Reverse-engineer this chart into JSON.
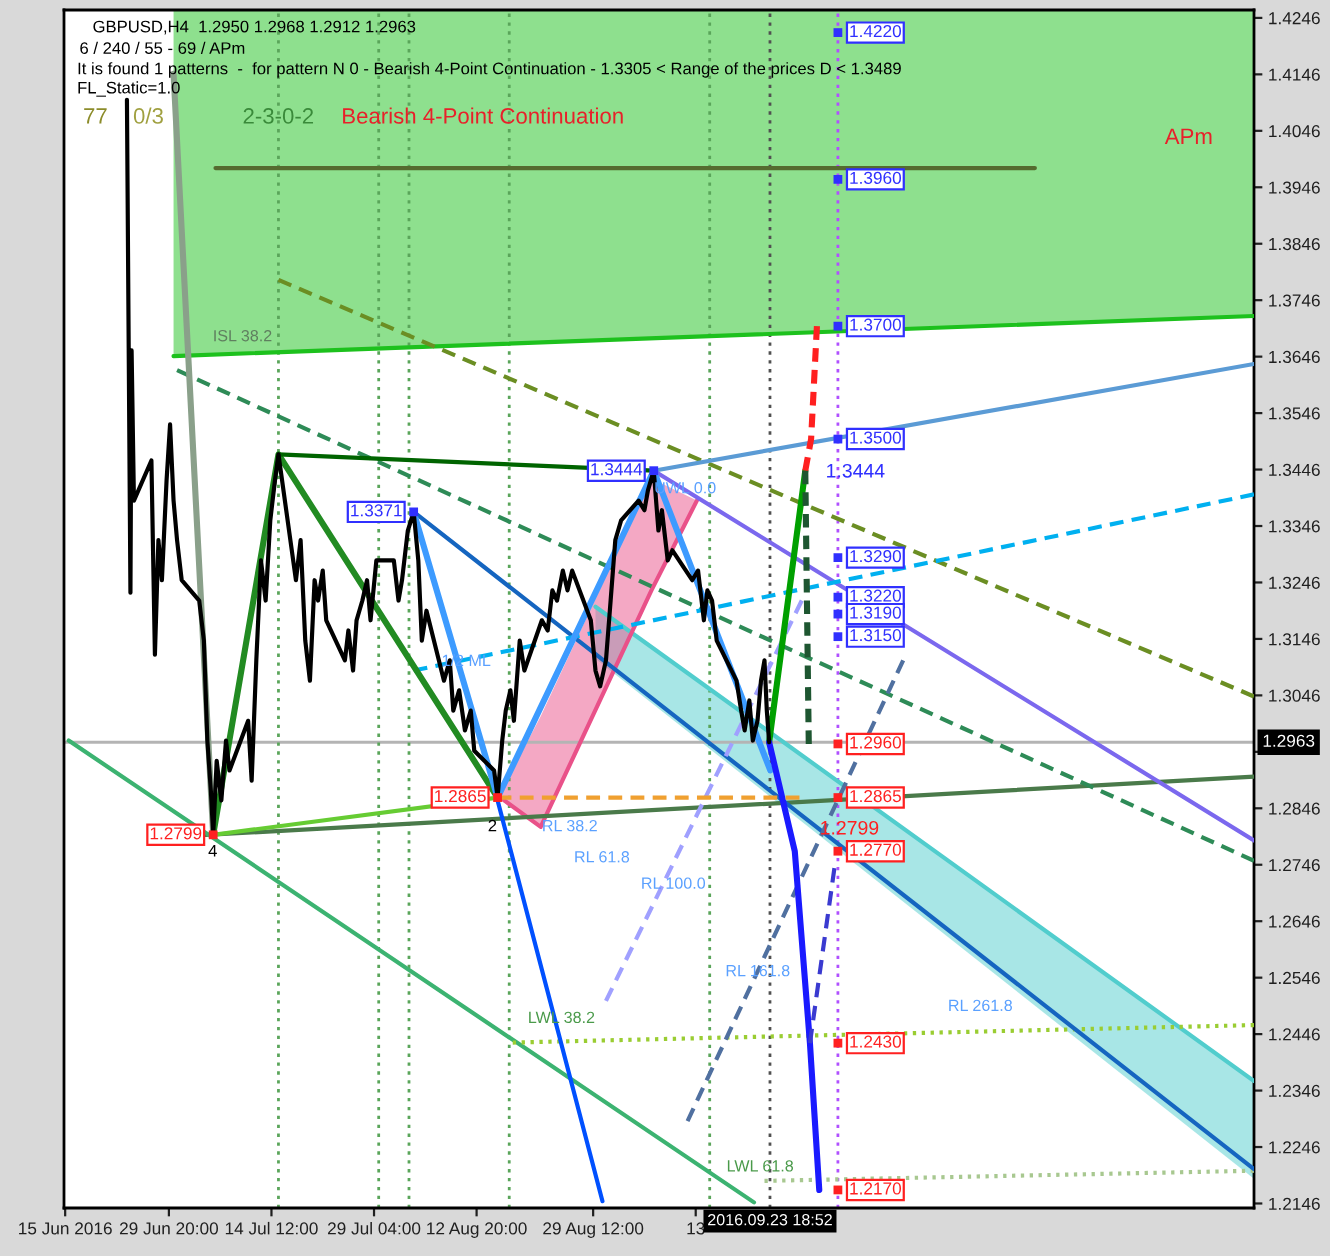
{
  "chart_data": {
    "type": "line",
    "title": "GBPUSD,H4  1.2950 1.2968 1.2912 1.2963",
    "xlim": [
      "2016-06-14T20:00",
      "2016-12-02T00:00"
    ],
    "ylim": [
      1.2138,
      1.426
    ],
    "xticks": [
      {
        "value": "2016-06-15",
        "label": "15 Jun 2016"
      },
      {
        "value": "2016-06-29T20:00",
        "label": "29 Jun 20:00"
      },
      {
        "value": "2016-07-14T12:00",
        "label": "14 Jul 12:00"
      },
      {
        "value": "2016-07-29T04:00",
        "label": "29 Jul 04:00"
      },
      {
        "value": "2016-08-12T20:00",
        "label": "12 Aug 20:00"
      },
      {
        "value": "2016-08-29T12:00",
        "label": "29 Aug 12:00"
      },
      {
        "value": "2016-09-13T04:00",
        "label": "13"
      }
    ],
    "yticks": [
      1.2146,
      1.2246,
      1.2346,
      1.2446,
      1.2546,
      1.2646,
      1.2746,
      1.2846,
      {
        "value": 1.2946,
        "label": null
      },
      1.3046,
      1.3146,
      1.3246,
      1.3346,
      1.3446,
      1.3546,
      1.3646,
      1.3746,
      1.3846,
      1.3946,
      1.4046,
      1.4146,
      1.4246
    ],
    "series": [
      {
        "type": "line",
        "color": "#1dc11d",
        "line_style": "solid",
        "x": [
          "2016-06-30T12:00",
          "2016-12-02T00:00"
        ],
        "values": [
          1.3647,
          1.3718
        ],
        "lower": [
          1.3647,
          1.3718
        ],
        "upper": [
          1.426,
          1.426
        ]
      },
      {
        "type": "line",
        "color": "#51cdcd",
        "line_style": "solid",
        "x": [
          "2016-08-29T20:00",
          "2016-12-02T00:00"
        ],
        "values": [
          1.3203,
          1.2363
        ],
        "lower": [
          1.3111,
          1.219
        ],
        "upper": [
          1.3203,
          1.2363
        ]
      },
      {
        "type": "line",
        "color": "#e95189",
        "line_style": "solid",
        "x": [
          "2016-08-16T00:00",
          "2016-08-22T00:00",
          "2016-09-06T20:00",
          "2016-09-13T08:00"
        ],
        "values": [
          1.2867,
          1.2813,
          1.3232,
          1.3391
        ],
        "lower": [
          1.2867,
          1.2813,
          1.3232,
          1.3391
        ],
        "upper": [
          1.2867,
          1.3009,
          1.343,
          1.3391
        ]
      },
      {
        "type": "line",
        "color": "#556b2f",
        "line_style": "solid",
        "x": [
          "2016-07-06T12:00",
          "2016-10-31T16:00"
        ],
        "values": [
          1.398,
          1.398
        ]
      },
      {
        "type": "line",
        "color": "#4a7a4a",
        "line_style": "solid",
        "x": [
          "2016-07-01T04:00",
          "2016-12-02T00:00"
        ],
        "values": [
          1.2796,
          1.2902
        ]
      },
      {
        "type": "line",
        "color": "#3cb371",
        "line_style": "solid",
        "x": [
          "2016-06-15T12:00",
          "2016-09-21T12:00"
        ],
        "values": [
          1.2966,
          1.2148
        ]
      },
      {
        "type": "line",
        "color": "#6b8e23",
        "line_style": "dashed",
        "x": [
          "2016-07-15T12:00",
          "2016-12-02T00:00"
        ],
        "values": [
          1.3782,
          1.3044
        ]
      },
      {
        "type": "line",
        "color": "#2e8b57",
        "line_style": "dashed",
        "x": [
          "2016-07-01T00:00",
          "2016-12-02T00:00"
        ],
        "values": [
          1.3622,
          1.2753
        ]
      },
      {
        "type": "line",
        "color": "#9acd32",
        "line_style": "dotted",
        "x": [
          "2016-08-18T00:00",
          "2016-12-02T00:00"
        ],
        "values": [
          1.2431,
          1.2462
        ]
      },
      {
        "type": "line",
        "color": "#a8c890",
        "line_style": "dotted",
        "x": [
          "2016-09-23T00:00",
          "2016-12-02T00:00"
        ],
        "values": [
          1.2186,
          1.2204
        ]
      },
      {
        "type": "line",
        "color": "#1565c0",
        "line_style": "solid",
        "x": [
          "2016-08-03T20:00",
          "2016-12-02T00:00"
        ],
        "values": [
          1.3371,
          1.2207
        ]
      },
      {
        "type": "line",
        "color": "#5b9bd5",
        "line_style": "solid",
        "x": [
          "2016-09-07T04:00",
          "2016-12-02T00:00"
        ],
        "values": [
          1.3444,
          1.3633
        ]
      },
      {
        "type": "line",
        "color": "#7b68ee",
        "line_style": "solid",
        "x": [
          "2016-09-07T04:00",
          "2016-12-02T00:00"
        ],
        "values": [
          1.3444,
          1.2789
        ]
      },
      {
        "type": "line",
        "color": "#00b0f0",
        "line_style": "dashed",
        "x": [
          "2016-08-03T20:00",
          "2016-12-02T00:00"
        ],
        "values": [
          1.309,
          1.3402
        ]
      },
      {
        "type": "line",
        "color": "#0050ff",
        "line_style": "solid",
        "x": [
          "2016-08-15T20:00",
          "2016-08-30T20:00"
        ],
        "values": [
          1.286,
          1.215
        ]
      },
      {
        "type": "line",
        "color": "#a0a0ff",
        "line_style": "dashed",
        "x": [
          "2016-08-31T08:00",
          "2016-09-28T08:00"
        ],
        "values": [
          1.2505,
          1.3214
        ]
      },
      {
        "type": "line",
        "color": "#5070a0",
        "line_style": "dashed",
        "x": [
          "2016-09-12T00:00",
          "2016-10-12T20:00"
        ],
        "values": [
          1.2292,
          1.3108
        ]
      },
      {
        "type": "line",
        "color": "#8aa08a",
        "line_style": "solid",
        "x": [
          "2016-06-30T12:00",
          "2016-07-06T04:00"
        ],
        "values": [
          1.4147,
          1.2799
        ]
      },
      {
        "type": "line",
        "color": "#228b22",
        "line_style": "solid",
        "x": [
          "2016-07-06T04:00",
          "2016-07-15T12:00",
          "2016-08-15T20:00"
        ],
        "values": [
          1.2799,
          1.3473,
          1.2865
        ]
      },
      {
        "type": "line",
        "color": "#006400",
        "line_style": "solid",
        "x": [
          "2016-07-15T12:00",
          "2016-09-07T04:00"
        ],
        "values": [
          1.3473,
          1.3444
        ]
      },
      {
        "type": "line",
        "color": "#66cc33",
        "line_style": "solid",
        "x": [
          "2016-07-06T04:00",
          "2016-08-15T20:00"
        ],
        "values": [
          1.2799,
          1.2865
        ]
      },
      {
        "type": "line",
        "color": "#3d9bff",
        "line_style": "solid",
        "x": [
          "2016-08-03T20:00",
          "2016-08-15T20:00",
          "2016-09-07T04:00",
          "2016-09-23T20:00"
        ],
        "values": [
          1.3371,
          1.2865,
          1.3444,
          1.2913
        ]
      },
      {
        "type": "line",
        "color": "#00a000",
        "line_style": "solid",
        "x": [
          "2016-09-23T16:00",
          "2016-09-28T20:00"
        ],
        "values": [
          1.2963,
          1.3444
        ]
      },
      {
        "type": "line",
        "color": "#ff2020",
        "line_style": "dashed",
        "x": [
          "2016-09-28T20:00",
          "2016-09-29T16:00",
          "2016-09-30T12:00"
        ],
        "values": [
          1.3444,
          1.35,
          1.37
        ]
      },
      {
        "type": "line",
        "color": "#1e5631",
        "line_style": "dashed",
        "x": [
          "2016-09-28T20:00",
          "2016-09-29T08:00"
        ],
        "values": [
          1.3444,
          1.296
        ]
      },
      {
        "type": "line",
        "color": "#1a1aff",
        "line_style": "solid",
        "x": [
          "2016-09-23T16:00",
          "2016-09-27T08:00",
          "2016-09-29T12:00",
          "2016-09-30T20:00"
        ],
        "values": [
          1.2963,
          1.277,
          1.243,
          1.217
        ]
      },
      {
        "type": "line",
        "color": "#3a3ad0",
        "line_style": "dashed",
        "x": [
          "2016-09-29T12:00",
          "2016-10-03T00:00"
        ],
        "values": [
          1.243,
          1.274
        ]
      },
      {
        "type": "line",
        "color": "#f0a030",
        "line_style": "dashed",
        "x": [
          "2016-08-15T20:00",
          "2016-09-28T00:00"
        ],
        "values": [
          1.2865,
          1.2865
        ]
      },
      {
        "color": "#000000",
        "line_style": "solid",
        "x": [
          "2016-06-23T20:00",
          "2016-06-24T08:00",
          "2016-06-24T12:00",
          "2016-06-24T20:00",
          "2016-06-27T08:00",
          "2016-06-27T20:00",
          "2016-06-28T08:00",
          "2016-06-28T20:00",
          "2016-06-29T12:00",
          "2016-06-30T00:00",
          "2016-06-30T12:00",
          "2016-07-01T00:00",
          "2016-07-01T16:00",
          "2016-07-04T04:00",
          "2016-07-04T20:00",
          "2016-07-05T08:00",
          "2016-07-05T20:00",
          "2016-07-06T04:00",
          "2016-07-06T16:00",
          "2016-07-07T08:00",
          "2016-07-08T00:00",
          "2016-07-08T12:00",
          "2016-07-11T04:00",
          "2016-07-11T16:00",
          "2016-07-12T08:00",
          "2016-07-13T00:00",
          "2016-07-13T16:00",
          "2016-07-14T08:00",
          "2016-07-15T00:00",
          "2016-07-15T12:00",
          "2016-07-18T00:00",
          "2016-07-18T16:00",
          "2016-07-19T08:00",
          "2016-07-20T00:00",
          "2016-07-20T16:00",
          "2016-07-21T04:00",
          "2016-07-21T20:00",
          "2016-07-22T08:00",
          "2016-07-25T00:00",
          "2016-07-25T12:00",
          "2016-07-26T04:00",
          "2016-07-26T16:00",
          "2016-07-27T12:00",
          "2016-07-28T04:00",
          "2016-07-28T16:00",
          "2016-07-29T12:00",
          "2016-08-01T00:00",
          "2016-08-01T16:00",
          "2016-08-02T04:00",
          "2016-08-03T00:00",
          "2016-08-03T20:00",
          "2016-08-04T12:00",
          "2016-08-05T00:00",
          "2016-08-05T16:00",
          "2016-08-08T04:00",
          "2016-08-09T00:00",
          "2016-08-09T12:00",
          "2016-08-10T08:00",
          "2016-08-11T04:00",
          "2016-08-12T00:00",
          "2016-08-12T12:00",
          "2016-08-15T08:00",
          "2016-08-15T20:00",
          "2016-08-16T12:00",
          "2016-08-17T00:00",
          "2016-08-17T16:00",
          "2016-08-18T04:00",
          "2016-08-19T00:00",
          "2016-08-19T16:00",
          "2016-08-22T04:00",
          "2016-08-23T00:00",
          "2016-08-23T16:00",
          "2016-08-24T08:00",
          "2016-08-25T04:00",
          "2016-08-25T20:00",
          "2016-08-26T12:00",
          "2016-08-29T04:00",
          "2016-08-29T20:00",
          "2016-08-30T12:00",
          "2016-08-31T08:00",
          "2016-09-01T00:00",
          "2016-09-01T16:00",
          "2016-09-02T12:00",
          "2016-09-05T00:00",
          "2016-09-05T20:00",
          "2016-09-06T08:00",
          "2016-09-07T04:00",
          "2016-09-07T20:00",
          "2016-09-08T08:00",
          "2016-09-09T04:00",
          "2016-09-09T20:00",
          "2016-09-12T16:00",
          "2016-09-13T12:00",
          "2016-09-14T08:00",
          "2016-09-14T20:00",
          "2016-09-15T12:00",
          "2016-09-16T04:00",
          "2016-09-19T00:00",
          "2016-09-19T16:00",
          "2016-09-20T04:00",
          "2016-09-20T20:00",
          "2016-09-21T08:00",
          "2016-09-22T00:00",
          "2016-09-22T12:00",
          "2016-09-23T00:00",
          "2016-09-23T08:00",
          "2016-09-23T16:00"
        ],
        "values": [
          1.4101,
          1.3228,
          1.3657,
          1.3391,
          1.3462,
          1.3118,
          1.3321,
          1.325,
          1.3427,
          1.3526,
          1.3391,
          1.3321,
          1.325,
          1.3214,
          1.3143,
          1.2966,
          1.2877,
          1.2799,
          1.293,
          1.286,
          1.2966,
          1.2913,
          1.3001,
          1.2895,
          1.3108,
          1.3285,
          1.3214,
          1.3356,
          1.3427,
          1.3473,
          1.325,
          1.3321,
          1.3143,
          1.3072,
          1.325,
          1.3214,
          1.3267,
          1.3179,
          1.3108,
          1.3161,
          1.309,
          1.3179,
          1.3214,
          1.325,
          1.3179,
          1.3285,
          1.3285,
          1.3214,
          1.325,
          1.3338,
          1.3371,
          1.3285,
          1.3143,
          1.3196,
          1.3072,
          1.3108,
          1.3019,
          1.3055,
          1.2984,
          1.3019,
          1.2948,
          1.2913,
          1.2865,
          1.2966,
          1.3019,
          1.3055,
          1.3001,
          1.3143,
          1.309,
          1.3179,
          1.3161,
          1.3232,
          1.3214,
          1.3267,
          1.3232,
          1.3267,
          1.3179,
          1.309,
          1.3062,
          1.3108,
          1.3214,
          1.3321,
          1.3356,
          1.3391,
          1.3374,
          1.3409,
          1.3444,
          1.3338,
          1.3374,
          1.3285,
          1.3303,
          1.325,
          1.3267,
          1.3179,
          1.3232,
          1.3214,
          1.3143,
          1.3072,
          1.3019,
          1.2984,
          1.3037,
          1.2966,
          1.3001,
          1.3072,
          1.3108,
          1.3019,
          1.2963
        ]
      },
      {
        "type": "scatter",
        "marker": "square",
        "x": [
          "2016-07-06T04:00",
          "2016-08-03T20:00",
          "2016-08-15T20:00",
          "2016-09-07T04:00"
        ],
        "values": [
          1.2799,
          1.3371,
          1.2865,
          1.3444
        ],
        "colors": [
          "#ff2020",
          "#3030ff",
          "#ff2020",
          "#3030ff"
        ],
        "value_labels": [
          "1.2799",
          "1.3371",
          "1.2865",
          "1.3444"
        ]
      },
      {
        "type": "scatter",
        "marker": "square",
        "x": [
          "2016-10-03T12:00",
          "2016-10-03T12:00",
          "2016-10-03T12:00",
          "2016-10-03T12:00",
          "2016-10-03T12:00",
          "2016-10-03T12:00",
          "2016-10-03T12:00",
          "2016-10-03T12:00",
          "2016-10-03T12:00",
          "2016-10-03T12:00",
          "2016-10-03T12:00",
          "2016-10-03T12:00",
          "2016-10-03T12:00"
        ],
        "values": [
          1.422,
          1.396,
          1.37,
          1.35,
          1.329,
          1.322,
          1.319,
          1.315,
          1.296,
          1.2865,
          1.277,
          1.243,
          1.217
        ],
        "colors": [
          "#3030ff",
          "#3030ff",
          "#3030ff",
          "#3030ff",
          "#3030ff",
          "#3030ff",
          "#3030ff",
          "#3030ff",
          "#ff2020",
          "#ff2020",
          "#ff2020",
          "#ff2020",
          "#ff2020"
        ],
        "value_labels": [
          "1.4220",
          "1.3960",
          "1.3700",
          "1.3500",
          "1.3290",
          "1.3220",
          "1.3190",
          "1.3150",
          "1.2960",
          "1.2865",
          "1.2770",
          "1.2430",
          "1.2170"
        ]
      }
    ],
    "ref_lines": [
      {
        "axis": "y",
        "value": 1.2963,
        "label": "1.2963",
        "color": "#b4b4b4",
        "line_style": "solid"
      },
      {
        "axis": "x",
        "value": "2016-09-23T18:52",
        "label": "2016.09.23 18:52",
        "color": "#505050",
        "line_style": "dotted"
      },
      {
        "axis": "x",
        "value": "2016-10-03T12:00",
        "color": "#b050ff",
        "line_style": "dotted"
      },
      {
        "axis": "x",
        "value": "2016-07-15T12:00",
        "color": "#5aa55a",
        "line_style": "dotted"
      },
      {
        "axis": "x",
        "value": "2016-07-29T20:00",
        "color": "#5aa55a",
        "line_style": "dotted"
      },
      {
        "axis": "x",
        "value": "2016-08-03T04:00",
        "color": "#5aa55a",
        "line_style": "dotted"
      },
      {
        "axis": "x",
        "value": "2016-08-17T12:00",
        "color": "#5aa55a",
        "line_style": "dotted"
      },
      {
        "axis": "x",
        "value": "2016-09-15T04:00",
        "color": "#5aa55a",
        "line_style": "dotted"
      }
    ],
    "annotations": [
      "6 / 240 / 55 - 69 / APm",
      "It is found 1 patterns  -  for pattern N 0 - Bearish 4-Point Continuation - 1.3305 < Range of the prices D < 1.3489",
      "FL_Static=1.0",
      "77",
      "0/3",
      "2-3-0-2",
      "Bearish 4-Point Continuation",
      "APm",
      "ISL 38.2",
      "1/2 ML",
      "UWL 0.0",
      "RL 38.2",
      "RL 61.8",
      "RL 100.0",
      "RL 161.8",
      "RL 261.8",
      "LWL 38.2",
      "LWL 61.8",
      "4",
      "2",
      "1.3444",
      "1.2799"
    ]
  }
}
